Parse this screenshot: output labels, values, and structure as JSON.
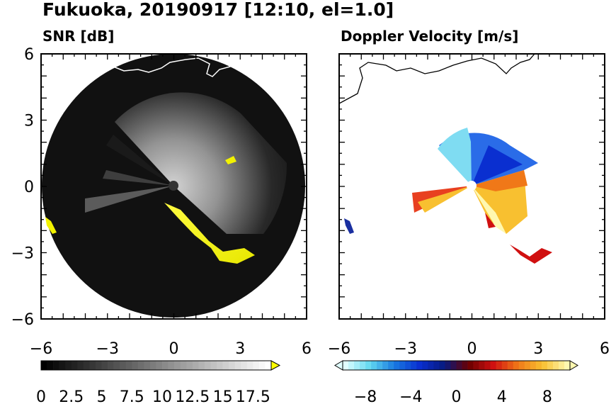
{
  "title": "Fukuoka, 20190917 [12:10, el=1.0]",
  "colors": {
    "background": "#ffffff",
    "snr_field": "#111111",
    "snr_echo_high": "#f2f200",
    "velocity_negative": "#0a2fd0",
    "velocity_positive": "#f07818",
    "coastline_snr": "#ffffff",
    "coastline_velocity": "#000000"
  },
  "chart_data": [
    {
      "type": "heatmap",
      "title": "SNR [dB]",
      "xlim": [
        -6,
        6
      ],
      "ylim": [
        -6,
        6
      ],
      "x_ticks": [
        "−6",
        "−3",
        "0",
        "3",
        "6"
      ],
      "y_ticks": [
        "6",
        "3",
        "0",
        "−3",
        "−6"
      ],
      "radar_range": 6,
      "colorbar": {
        "min": 0,
        "max": 19,
        "extend": "max",
        "tick_values": [
          0,
          2.5,
          5,
          7.5,
          10,
          12.5,
          15,
          17.5
        ],
        "tick_labels": [
          "0",
          "2.5",
          "5",
          "7.5",
          "10",
          "12.5",
          "15",
          "17.5"
        ],
        "palette": [
          "#000000",
          "#ffffff",
          "#ffff00"
        ]
      }
    },
    {
      "type": "heatmap",
      "title": "Doppler Velocity [m/s]",
      "xlim": [
        -6,
        6
      ],
      "ylim": [
        -6,
        6
      ],
      "x_ticks": [
        "−6",
        "−3",
        "0",
        "3",
        "6"
      ],
      "y_ticks": [],
      "colorbar": {
        "min": -10,
        "max": 10,
        "extend": "both",
        "tick_values": [
          -8,
          -4,
          0,
          4,
          8
        ],
        "tick_labels": [
          "−8",
          "−4",
          "0",
          "4",
          "8"
        ],
        "palette": [
          "#e0ffff",
          "#60d8f0",
          "#1878e0",
          "#0a2fd0",
          "#071a80",
          "#6a0000",
          "#d01010",
          "#f07818",
          "#f8c030",
          "#fff8b0"
        ]
      }
    }
  ]
}
